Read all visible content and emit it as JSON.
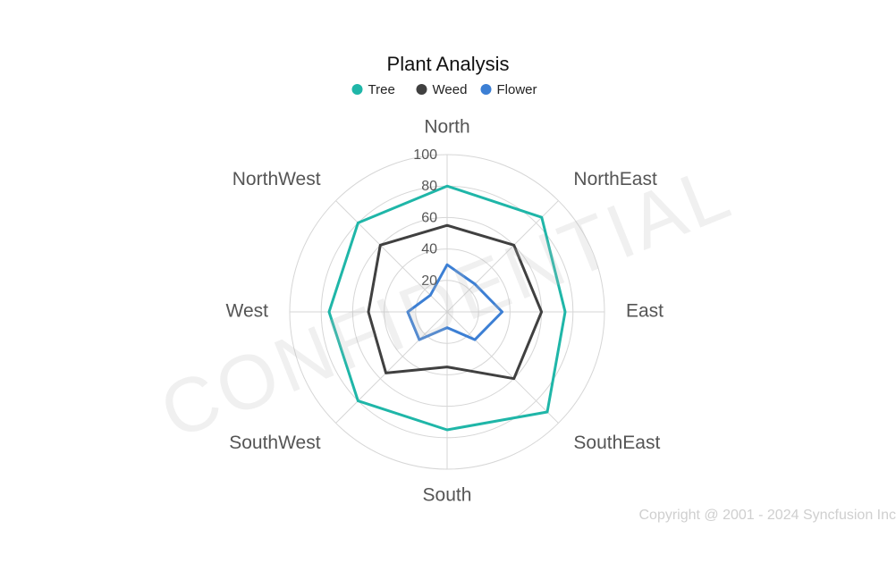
{
  "watermark": "CONFIDENTIAL",
  "copyright": "Copyright @ 2001 - 2024 Syncfusion Inc",
  "chart_data": {
    "type": "radar",
    "title": "Plant Analysis",
    "categories": [
      "North",
      "NorthEast",
      "East",
      "SouthEast",
      "South",
      "SouthWest",
      "West",
      "NorthWest"
    ],
    "ylim": [
      0,
      100
    ],
    "yticks": [
      20,
      40,
      60,
      80,
      100
    ],
    "grid": true,
    "legend_position": "top",
    "series": [
      {
        "name": "Tree",
        "color": "#1fb6a8",
        "values": [
          80,
          85,
          75,
          90,
          75,
          80,
          75,
          80
        ]
      },
      {
        "name": "Weed",
        "color": "#404040",
        "values": [
          55,
          60,
          60,
          60,
          35,
          55,
          50,
          60
        ]
      },
      {
        "name": "Flower",
        "color": "#3c7fd4",
        "values": [
          30,
          25,
          35,
          25,
          10,
          25,
          25,
          15
        ]
      }
    ]
  }
}
